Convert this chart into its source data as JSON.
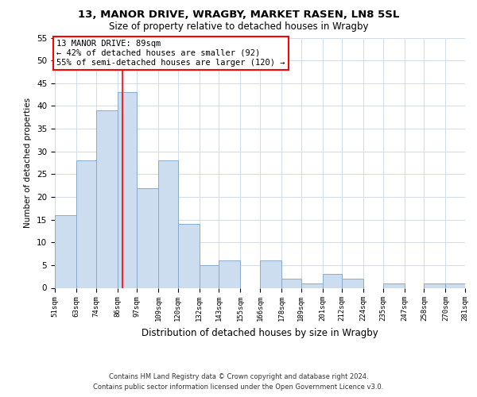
{
  "title1": "13, MANOR DRIVE, WRAGBY, MARKET RASEN, LN8 5SL",
  "title2": "Size of property relative to detached houses in Wragby",
  "xlabel": "Distribution of detached houses by size in Wragby",
  "ylabel": "Number of detached properties",
  "bar_color": "#ccddef",
  "bar_edgecolor": "#88aacc",
  "vline_x": 89,
  "vline_color": "red",
  "bin_edges": [
    51,
    63,
    74,
    86,
    97,
    109,
    120,
    132,
    143,
    155,
    166,
    178,
    189,
    201,
    212,
    224,
    235,
    247,
    258,
    270,
    281
  ],
  "bar_heights": [
    16,
    28,
    39,
    43,
    22,
    28,
    14,
    5,
    6,
    0,
    6,
    2,
    1,
    3,
    2,
    0,
    1,
    0,
    1,
    1
  ],
  "tick_labels": [
    "51sqm",
    "63sqm",
    "74sqm",
    "86sqm",
    "97sqm",
    "109sqm",
    "120sqm",
    "132sqm",
    "143sqm",
    "155sqm",
    "166sqm",
    "178sqm",
    "189sqm",
    "201sqm",
    "212sqm",
    "224sqm",
    "235sqm",
    "247sqm",
    "258sqm",
    "270sqm",
    "281sqm"
  ],
  "ylim": [
    0,
    55
  ],
  "yticks": [
    0,
    5,
    10,
    15,
    20,
    25,
    30,
    35,
    40,
    45,
    50,
    55
  ],
  "annotation_title": "13 MANOR DRIVE: 89sqm",
  "annotation_line1": "← 42% of detached houses are smaller (92)",
  "annotation_line2": "55% of semi-detached houses are larger (120) →",
  "footer1": "Contains HM Land Registry data © Crown copyright and database right 2024.",
  "footer2": "Contains public sector information licensed under the Open Government Licence v3.0.",
  "background_color": "#ffffff",
  "grid_color": "#d0dce8"
}
